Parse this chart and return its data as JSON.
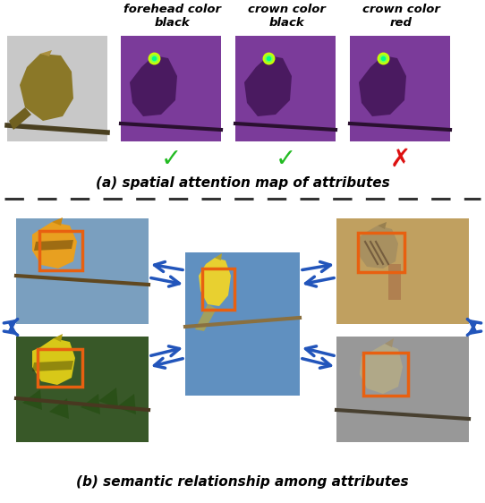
{
  "title_a": "(a) spatial attention map of attributes",
  "title_b": "(b) semantic relationship among attributes",
  "label1": "forehead color\nblack",
  "label2": "crown color\nblack",
  "label3": "crown color\nred",
  "check_color": "#22bb22",
  "cross_color": "#dd1111",
  "purple_bg": "#7B3B9A",
  "orange_box": "#E86010",
  "arrow_color": "#2255BB",
  "bg_color": "#ffffff",
  "dashed_color": "#333333",
  "gray_bird_bg": "#c8c8c8",
  "tl_bg": "#7A9FBF",
  "tr_bg": "#C0A060",
  "bl_bg": "#385828",
  "br_bg": "#989898",
  "center_bg": "#6090C0"
}
